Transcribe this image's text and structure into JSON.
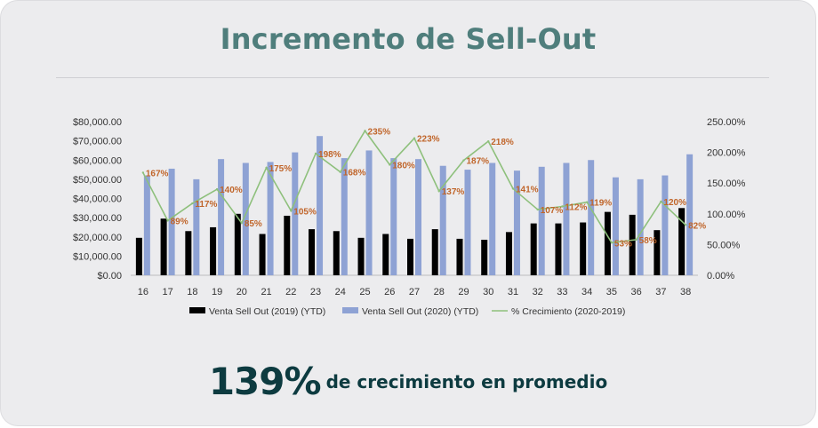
{
  "header": {
    "title": "Incremento de Sell-Out"
  },
  "footer": {
    "highlight": "139%",
    "caption": "de crecimiento en promedio"
  },
  "colors": {
    "bar2019": "#000000",
    "bar2020": "#8ea2d4",
    "line": "#8ec07c",
    "labels": "#c0652a"
  },
  "chart_data": {
    "type": "bar",
    "title": "",
    "xlabel": "",
    "ylabel": "",
    "categories": [
      "16",
      "17",
      "18",
      "19",
      "20",
      "21",
      "22",
      "23",
      "24",
      "25",
      "26",
      "27",
      "28",
      "29",
      "30",
      "31",
      "32",
      "33",
      "34",
      "35",
      "36",
      "37",
      "38"
    ],
    "series": [
      {
        "name": "Venta Sell Out (2019) (YTD)",
        "type": "bar",
        "axis": "left",
        "values": [
          19500,
          29500,
          23000,
          25000,
          32000,
          21500,
          31000,
          24000,
          23000,
          19500,
          21500,
          19000,
          24000,
          19000,
          18500,
          22500,
          27000,
          27000,
          27500,
          33000,
          31500,
          23500,
          35000
        ]
      },
      {
        "name": "Venta Sell Out (2020) (YTD)",
        "type": "bar",
        "axis": "left",
        "values": [
          52000,
          55500,
          50000,
          60500,
          58500,
          59000,
          64000,
          72500,
          61000,
          65000,
          61000,
          60500,
          57000,
          55000,
          58500,
          54500,
          56500,
          58500,
          60000,
          51000,
          50000,
          52000,
          63000
        ]
      },
      {
        "name": "% Crecimiento (2020-2019)",
        "type": "line",
        "axis": "right",
        "values": [
          167,
          89,
          117,
          140,
          85,
          175,
          105,
          198,
          168,
          235,
          180,
          223,
          137,
          187,
          218,
          141,
          107,
          112,
          119,
          53,
          58,
          120,
          82
        ]
      }
    ],
    "data_labels": [
      "167%",
      "89%",
      "117%",
      "140%",
      "85%",
      "175%",
      "105%",
      "198%",
      "168%",
      "235%",
      "180%",
      "223%",
      "137%",
      "187%",
      "218%",
      "141%",
      "107%",
      "112%",
      "119%",
      "53%",
      "58%",
      "120%",
      "82%"
    ],
    "left_ticks": [
      "$0.00",
      "$10,000.00",
      "$20,000.00",
      "$30,000.00",
      "$40,000.00",
      "$50,000.00",
      "$60,000.00",
      "$70,000.00",
      "$80,000.00"
    ],
    "right_ticks": [
      "0.00%",
      "50.00%",
      "100.00%",
      "150.00%",
      "200.00%",
      "250.00%"
    ],
    "ylim": [
      0,
      80000
    ],
    "y2lim": [
      0,
      250
    ],
    "grid": false,
    "legend": "bottom"
  }
}
